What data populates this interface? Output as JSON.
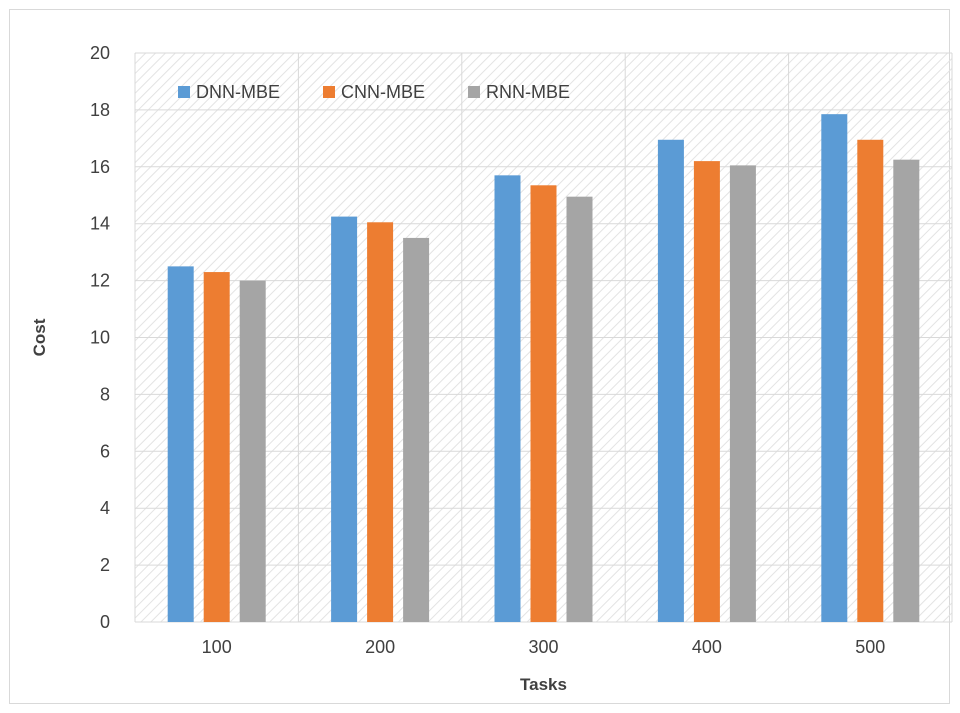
{
  "chart_data": {
    "type": "bar",
    "title": "",
    "xlabel": "Tasks",
    "ylabel": "Cost",
    "categories": [
      "100",
      "200",
      "300",
      "400",
      "500"
    ],
    "series": [
      {
        "name": "DNN-MBE",
        "color": "#5b9bd5",
        "values": [
          12.5,
          14.25,
          15.7,
          16.95,
          17.85
        ]
      },
      {
        "name": "CNN-MBE",
        "color": "#ed7d31",
        "values": [
          12.3,
          14.05,
          15.35,
          16.2,
          16.95
        ]
      },
      {
        "name": "RNN-MBE",
        "color": "#a5a5a5",
        "values": [
          12.0,
          13.5,
          14.95,
          16.05,
          16.25
        ]
      }
    ],
    "ylim": [
      0,
      20
    ],
    "yticks": [
      "0",
      "2",
      "4",
      "6",
      "8",
      "10",
      "12",
      "14",
      "16",
      "18",
      "20"
    ],
    "grid": true,
    "legend_position": "top-left"
  }
}
